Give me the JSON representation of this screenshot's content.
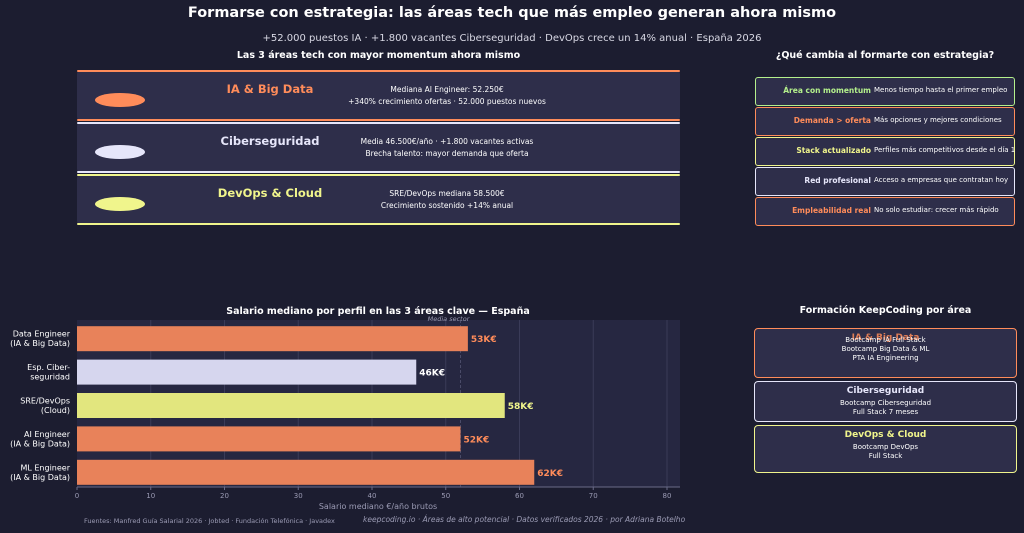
{
  "title": "Formarse con estrategia: las áreas tech que más empleo generan ahora mismo",
  "subtitle": "+52.000 puestos IA · +1.800 vacantes Ciberseguridad · DevOps crece un 14% anual · España 2026",
  "areas_section": {
    "title": "Las 3 áreas tech con mayor momentum ahora mismo",
    "items": [
      {
        "name": "IA & Big Data",
        "color": "#ff8c5a",
        "line1": "Mediana AI Engineer: 52.250€",
        "line2": "+340% crecimiento ofertas · 52.000 puestos nuevos"
      },
      {
        "name": "Ciberseguridad",
        "color": "#e6e6fa",
        "line1": "Media 46.500€/año · +1.800 vacantes activas",
        "line2": "Brecha talento: mayor demanda que oferta"
      },
      {
        "name": "DevOps & Cloud",
        "color": "#f0f58c",
        "line1": "SRE/DevOps mediana 58.500€",
        "line2": "Crecimiento sostenido +14% anual"
      }
    ]
  },
  "changes_section": {
    "title": "¿Qué cambia al formarte con estrategia?",
    "items": [
      {
        "label": "Área con momentum",
        "text": "Menos tiempo hasta el primer empleo",
        "color": "#b4f08c"
      },
      {
        "label": "Demanda > oferta",
        "text": "Más opciones y mejores condiciones",
        "color": "#ff8c5a"
      },
      {
        "label": "Stack actualizado",
        "text": "Perfiles más competitivos desde el día 1",
        "color": "#f0f58c"
      },
      {
        "label": "Red profesional",
        "text": "Acceso a empresas que contratan hoy",
        "color": "#e6e6fa"
      },
      {
        "label": "Empleabilidad real",
        "text": "No solo estudiar: crecer más rápido",
        "color": "#ff8c5a"
      }
    ]
  },
  "chart_data": {
    "type": "bar",
    "orientation": "horizontal",
    "title": "Salario mediano por perfil en las 3 áreas clave — España",
    "xlabel": "Salario mediano €/año brutos",
    "ylabel": "",
    "xlim": [
      0,
      82
    ],
    "xticks": [
      0,
      10,
      20,
      30,
      40,
      50,
      60,
      70,
      80
    ],
    "grid": true,
    "reference_line": {
      "label": "Media sector",
      "value": 52
    },
    "categories": [
      [
        "Data Engineer",
        "(IA & Big Data)"
      ],
      [
        "Esp. Ciber-",
        "seguridad"
      ],
      [
        "SRE/DevOps",
        "(Cloud)"
      ],
      [
        "AI Engineer",
        "(IA & Big Data)"
      ],
      [
        "ML Engineer",
        "(IA & Big Data)"
      ]
    ],
    "values": [
      53,
      46,
      58,
      52,
      62
    ],
    "value_labels": [
      "53K€",
      "46K€",
      "58K€",
      "52K€",
      "62K€"
    ],
    "colors": [
      "#e8825a",
      "#d6d6ee",
      "#e2e67e",
      "#e8825a",
      "#e8825a"
    ],
    "label_colors": [
      "#ff8c5a",
      "#ffffff",
      "#f0f58c",
      "#ff8c5a",
      "#ff8c5a"
    ]
  },
  "training_section": {
    "title": "Formación KeepCoding por área",
    "items": [
      {
        "name": "IA & Big Data",
        "color": "#ff8c5a",
        "lines": [
          "Bootcamp IA Full Stack",
          "Bootcamp Big Data & ML",
          "PTA IA Engineering"
        ]
      },
      {
        "name": "Ciberseguridad",
        "color": "#e6e6fa",
        "lines": [
          "Bootcamp Ciberseguridad",
          "Full Stack 7 meses"
        ]
      },
      {
        "name": "DevOps & Cloud",
        "color": "#f0f58c",
        "lines": [
          "Bootcamp DevOps",
          "Full Stack"
        ]
      }
    ]
  },
  "sources": "Fuentes: Manfred Guía Salarial 2026 · Jobted · Fundación Telefónica · Javadex",
  "footer": "keepcoding.io  ·  Áreas de alto potencial  ·  Datos verificados 2026  ·  por Adriana Botelho"
}
